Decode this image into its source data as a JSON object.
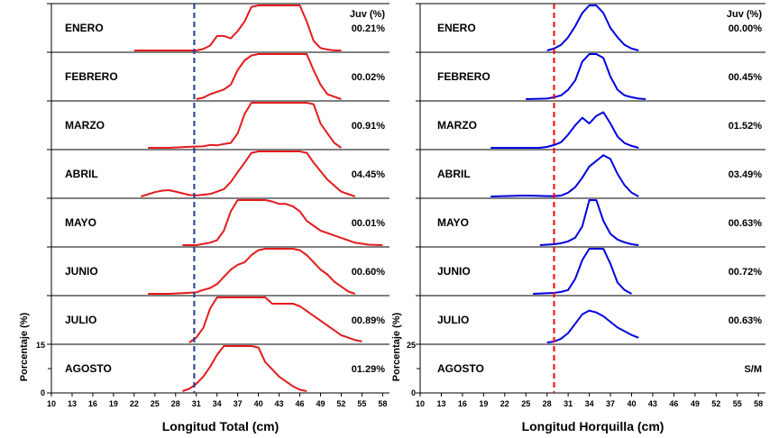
{
  "chart_data": [
    {
      "type": "line",
      "xlabel": "Longitud Total (cm)",
      "ylabel": "Porcentaje (%)",
      "xlim": [
        10,
        59
      ],
      "xticks": [
        "10",
        "13",
        "16",
        "19",
        "22",
        "25",
        "28",
        "31",
        "34",
        "37",
        "40",
        "43",
        "46",
        "49",
        "52",
        "55",
        "58"
      ],
      "yticks": [
        "0",
        "15"
      ],
      "panel_ymax": 15,
      "juv_header": "Juv (%)",
      "reference_line": {
        "x": 30.7,
        "style": "dashed",
        "color": "#1f3b8c"
      },
      "line_color": "#e41a1c",
      "series": [
        {
          "name": "ENERO",
          "juv": "00.21%",
          "x": [
            22,
            25,
            28,
            31,
            32,
            33,
            34,
            35,
            36,
            37,
            38,
            39,
            40,
            41,
            42,
            43,
            44,
            45,
            46,
            47,
            48,
            49,
            50,
            51,
            52
          ],
          "y": [
            0,
            0,
            0,
            0,
            0.3,
            1,
            3,
            3,
            2.5,
            4,
            6,
            9,
            13,
            15,
            14,
            16,
            17,
            16,
            11,
            6,
            2,
            0.5,
            0.2,
            0,
            0
          ]
        },
        {
          "name": "FEBRERO",
          "juv": "00.02%",
          "x": [
            31,
            32,
            33,
            34,
            35,
            36,
            37,
            38,
            39,
            40,
            41,
            42,
            43,
            44,
            45,
            46,
            47,
            48,
            49,
            50,
            51,
            52
          ],
          "y": [
            0,
            0.3,
            1,
            1.5,
            2,
            3,
            6,
            8,
            9,
            10,
            11,
            12,
            14,
            17,
            18,
            16,
            11,
            6,
            3,
            1,
            0.5,
            0
          ]
        },
        {
          "name": "MARZO",
          "juv": "00.91%",
          "x": [
            24,
            27,
            30,
            32,
            33,
            34,
            35,
            36,
            37,
            38,
            39,
            40,
            41,
            42,
            43,
            44,
            45,
            46,
            47,
            48,
            49,
            50,
            51,
            52
          ],
          "y": [
            0,
            0,
            0.2,
            0.3,
            0.6,
            0.5,
            0.8,
            1,
            3,
            7,
            12,
            14,
            13,
            14,
            13,
            13,
            14,
            14,
            12,
            9,
            5,
            3,
            1,
            0
          ]
        },
        {
          "name": "ABRIL",
          "juv": "04.45%",
          "x": [
            23,
            25,
            26,
            27,
            28,
            30,
            31,
            33,
            35,
            36,
            37,
            38,
            39,
            40,
            41,
            42,
            43,
            44,
            45,
            46,
            47,
            48,
            50,
            52,
            54
          ],
          "y": [
            0,
            0.9,
            1.2,
            1.3,
            1,
            0.3,
            0.2,
            0.5,
            1.5,
            3,
            5,
            7,
            9,
            11,
            13,
            14,
            15,
            15,
            13,
            11,
            9,
            7,
            3.5,
            1,
            0
          ]
        },
        {
          "name": "MAYO",
          "juv": "00.01%",
          "x": [
            29,
            31,
            33,
            34,
            35,
            36,
            37,
            38,
            39,
            40,
            41,
            42,
            43,
            44,
            45,
            46,
            47,
            48,
            49,
            50,
            51,
            52,
            54,
            56,
            58
          ],
          "y": [
            0,
            0,
            0.5,
            1,
            3,
            7,
            10,
            15,
            18,
            17,
            12,
            9,
            8.5,
            8.5,
            8,
            7,
            5,
            4,
            3,
            2.5,
            2,
            1.5,
            0.5,
            0.1,
            0
          ]
        },
        {
          "name": "JUNIO",
          "juv": "00.60%",
          "x": [
            24,
            27,
            30,
            31,
            32,
            33,
            34,
            35,
            36,
            37,
            38,
            39,
            40,
            41,
            42,
            43,
            44,
            45,
            46,
            47,
            48,
            49,
            50,
            51,
            52,
            53,
            54
          ],
          "y": [
            0,
            0,
            0.2,
            0.3,
            0.8,
            1.2,
            2,
            3.5,
            5,
            6,
            6.5,
            8,
            9,
            10,
            11,
            11,
            10.5,
            10,
            9,
            8,
            6.5,
            5,
            4,
            2.5,
            1.5,
            0.5,
            0
          ]
        },
        {
          "name": "JULIO",
          "juv": "00.89%",
          "x": [
            30,
            31,
            32,
            33,
            34,
            35,
            36,
            37,
            38,
            39,
            40,
            41,
            42,
            43,
            44,
            45,
            46,
            47,
            48,
            49,
            50,
            51,
            52,
            53,
            54,
            55
          ],
          "y": [
            0,
            1,
            3,
            7,
            12,
            15,
            16,
            15,
            11,
            10,
            11,
            10,
            8,
            8,
            8,
            8,
            7.5,
            6.5,
            5.5,
            4.5,
            3.5,
            2.5,
            1.5,
            1,
            0.5,
            0.2
          ]
        },
        {
          "name": "AGOSTO",
          "juv": "01.29%",
          "x": [
            29,
            30,
            31,
            32,
            33,
            34,
            35,
            36,
            37,
            38,
            39,
            40,
            41,
            42,
            43,
            44,
            45,
            46,
            47
          ],
          "y": [
            0,
            0.5,
            1.5,
            3,
            5,
            7.5,
            12,
            15,
            18,
            16,
            12,
            9,
            6,
            4.5,
            3,
            2,
            1,
            0.3,
            0
          ]
        }
      ]
    },
    {
      "type": "line",
      "xlabel": "Longitud Horquilla (cm)",
      "ylabel": "Porcentaje (%)",
      "xlim": [
        10,
        59
      ],
      "xticks": [
        "10",
        "13",
        "16",
        "19",
        "22",
        "25",
        "28",
        "31",
        "34",
        "37",
        "40",
        "43",
        "46",
        "49",
        "52",
        "55",
        "58"
      ],
      "yticks": [
        "0",
        "25"
      ],
      "panel_ymax": 25,
      "juv_header": "Juv (%)",
      "reference_line": {
        "x": 29,
        "style": "dashed",
        "color": "#ff0000"
      },
      "line_color": "#0000e0",
      "series": [
        {
          "name": "ENERO",
          "juv": "00.00%",
          "x": [
            28,
            29,
            30,
            31,
            32,
            33,
            34,
            35,
            36,
            37,
            38,
            39,
            40,
            41
          ],
          "y": [
            0,
            1,
            3,
            7,
            13,
            20,
            28,
            27,
            20,
            12,
            7,
            3,
            1,
            0
          ]
        },
        {
          "name": "FEBRERO",
          "juv": "00.45%",
          "x": [
            25,
            28,
            29,
            30,
            31,
            32,
            33,
            34,
            35,
            36,
            37,
            38,
            39,
            40,
            41,
            42
          ],
          "y": [
            0,
            0.3,
            1,
            2,
            5,
            10,
            20,
            29,
            30,
            22,
            12,
            5,
            2,
            1,
            0.3,
            0
          ]
        },
        {
          "name": "MARZO",
          "juv": "01.52%",
          "x": [
            20,
            24,
            27,
            28,
            29,
            30,
            31,
            32,
            33,
            34,
            35,
            36,
            37,
            38,
            39,
            40,
            41
          ],
          "y": [
            0,
            0,
            0,
            0.5,
            1.5,
            3,
            7,
            12,
            16,
            13,
            17,
            19,
            13,
            6,
            2.5,
            1,
            0
          ]
        },
        {
          "name": "ABRIL",
          "juv": "03.49%",
          "x": [
            20,
            23,
            25,
            27,
            28,
            29,
            30,
            31,
            32,
            33,
            34,
            35,
            36,
            37,
            38,
            39,
            40,
            41
          ],
          "y": [
            0,
            0.3,
            0.5,
            0.3,
            0.2,
            0.2,
            0.5,
            2,
            5,
            10,
            16,
            19,
            22,
            20,
            12,
            6,
            2,
            0
          ]
        },
        {
          "name": "MAYO",
          "juv": "00.63%",
          "x": [
            27,
            29,
            30,
            31,
            32,
            33,
            34,
            35,
            36,
            37,
            38,
            39,
            40,
            41
          ],
          "y": [
            0,
            0.5,
            1,
            2,
            4,
            10,
            25,
            24,
            13,
            6,
            3,
            1.5,
            0.5,
            0
          ]
        },
        {
          "name": "JUNIO",
          "juv": "00.72%",
          "x": [
            26,
            29,
            30,
            31,
            32,
            33,
            34,
            35,
            36,
            37,
            38,
            39,
            40
          ],
          "y": [
            0,
            0.5,
            1,
            2,
            8,
            18,
            25,
            27,
            24,
            16,
            6,
            2,
            0
          ]
        },
        {
          "name": "JULIO",
          "juv": "00.63%",
          "x": [
            28,
            29,
            30,
            31,
            32,
            33,
            34,
            35,
            36,
            37,
            38,
            39,
            40,
            41
          ],
          "y": [
            0,
            0.5,
            2,
            5,
            10,
            15,
            17,
            16,
            14,
            11,
            8,
            6,
            4,
            2.5
          ]
        },
        {
          "name": "AGOSTO",
          "juv": "S/M",
          "x": [],
          "y": []
        }
      ]
    }
  ]
}
